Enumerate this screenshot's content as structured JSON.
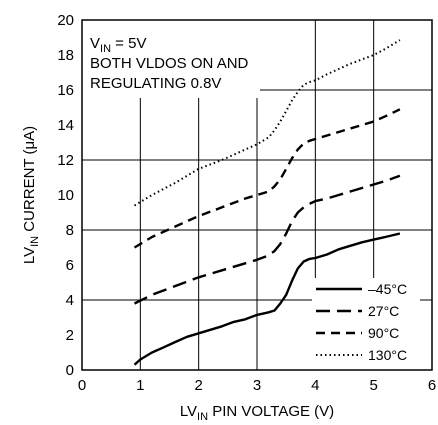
{
  "chart_data": {
    "type": "line",
    "title": "",
    "xlabel": {
      "main": "LV",
      "sub": "IN",
      "rest": " PIN VOLTAGE (V)"
    },
    "ylabel": {
      "main": "LV",
      "sub": "IN",
      "rest": " CURRENT (μA)"
    },
    "xlim": [
      0,
      6
    ],
    "ylim": [
      0,
      20
    ],
    "xticks": [
      "0",
      "1",
      "2",
      "3",
      "4",
      "5",
      "6"
    ],
    "yticks": [
      "0",
      "2",
      "4",
      "6",
      "8",
      "10",
      "12",
      "14",
      "16",
      "18",
      "20"
    ],
    "grid": true,
    "legend_position": "bottom-right",
    "conditions": [
      {
        "main": "V",
        "sub": "IN",
        "rest": " = 5V"
      },
      {
        "main": "BOTH VLDOS ON AND",
        "sub": "",
        "rest": ""
      },
      {
        "main": "REGULATING 0.8V",
        "sub": "",
        "rest": ""
      }
    ],
    "series": [
      {
        "name": "–45°C",
        "style": "solid",
        "x": [
          0.9,
          1.0,
          1.2,
          1.4,
          1.6,
          1.8,
          2.0,
          2.2,
          2.4,
          2.6,
          2.8,
          3.0,
          3.2,
          3.3,
          3.4,
          3.5,
          3.6,
          3.7,
          3.8,
          3.9,
          4.0,
          4.2,
          4.4,
          4.6,
          4.8,
          5.0,
          5.2,
          5.45
        ],
        "y": [
          0.3,
          0.6,
          1.0,
          1.3,
          1.6,
          1.9,
          2.1,
          2.3,
          2.5,
          2.75,
          2.9,
          3.15,
          3.3,
          3.4,
          3.8,
          4.3,
          5.1,
          5.8,
          6.2,
          6.35,
          6.4,
          6.6,
          6.9,
          7.1,
          7.3,
          7.45,
          7.6,
          7.8
        ]
      },
      {
        "name": "27°C",
        "style": "longdash",
        "x": [
          0.9,
          1.2,
          1.6,
          2.0,
          2.4,
          2.8,
          3.0,
          3.2,
          3.3,
          3.4,
          3.5,
          3.6,
          3.7,
          3.8,
          3.9,
          4.0,
          4.2,
          4.4,
          4.6,
          4.8,
          5.0,
          5.2,
          5.45
        ],
        "y": [
          3.8,
          4.3,
          4.8,
          5.3,
          5.7,
          6.1,
          6.3,
          6.55,
          6.8,
          7.2,
          7.8,
          8.5,
          9.0,
          9.3,
          9.5,
          9.65,
          9.8,
          10.0,
          10.2,
          10.4,
          10.6,
          10.8,
          11.1
        ]
      },
      {
        "name": "90°C",
        "style": "dash",
        "x": [
          0.9,
          1.2,
          1.6,
          2.0,
          2.4,
          2.8,
          3.0,
          3.2,
          3.3,
          3.4,
          3.5,
          3.6,
          3.7,
          3.8,
          3.9,
          4.0,
          4.2,
          4.4,
          4.6,
          4.8,
          5.0,
          5.2,
          5.45
        ],
        "y": [
          7.0,
          7.6,
          8.2,
          8.8,
          9.3,
          9.8,
          10.0,
          10.2,
          10.5,
          10.9,
          11.5,
          12.1,
          12.6,
          12.95,
          13.1,
          13.2,
          13.4,
          13.6,
          13.8,
          14.0,
          14.2,
          14.5,
          14.9
        ]
      },
      {
        "name": "130°C",
        "style": "dotted",
        "x": [
          0.9,
          1.2,
          1.6,
          2.0,
          2.4,
          2.8,
          3.0,
          3.2,
          3.3,
          3.4,
          3.5,
          3.6,
          3.7,
          3.8,
          3.9,
          4.0,
          4.2,
          4.4,
          4.6,
          4.8,
          5.0,
          5.2,
          5.45
        ],
        "y": [
          9.4,
          10.0,
          10.7,
          11.5,
          12.0,
          12.6,
          12.9,
          13.3,
          13.7,
          14.2,
          14.8,
          15.4,
          15.9,
          16.3,
          16.45,
          16.55,
          16.9,
          17.2,
          17.5,
          17.75,
          18.0,
          18.35,
          18.85
        ]
      }
    ]
  }
}
